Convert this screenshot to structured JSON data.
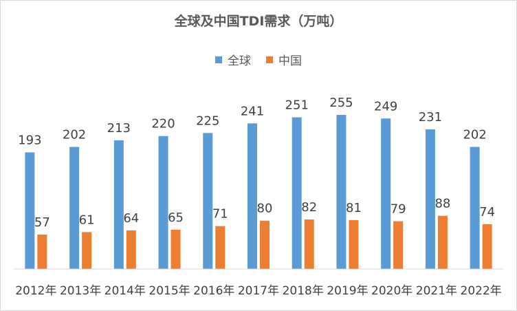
{
  "chart_data": {
    "type": "bar",
    "title": "全球及中国TDI需求（万吨）",
    "categories": [
      "2012年",
      "2013年",
      "2014年",
      "2015年",
      "2016年",
      "2017年",
      "2018年",
      "2019年",
      "2020年",
      "2021年",
      "2022年"
    ],
    "series": [
      {
        "name": "全球",
        "color": "#5B9BD5",
        "values": [
          193,
          202,
          213,
          220,
          225,
          241,
          251,
          255,
          249,
          231,
          202
        ]
      },
      {
        "name": "中国",
        "color": "#ED7D31",
        "values": [
          57,
          61,
          64,
          65,
          71,
          80,
          82,
          81,
          79,
          88,
          74
        ]
      }
    ],
    "xlabel": "",
    "ylabel": "",
    "ylim": [
      0,
      255
    ],
    "grid": false,
    "legend_position": "top-center",
    "data_labels": true
  }
}
